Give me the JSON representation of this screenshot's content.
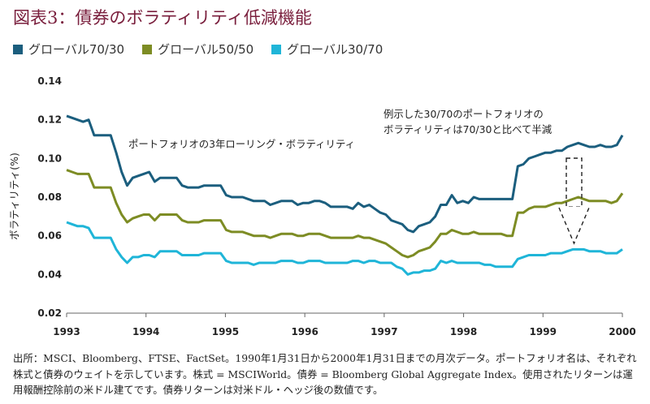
{
  "title": "図表3：債券のボラティリティ低減機能",
  "legend": [
    {
      "label": "グローバル70/30",
      "color": "#1b5e7e"
    },
    {
      "label": "グローバル50/50",
      "color": "#7d8c24"
    },
    {
      "label": "グローバル30/70",
      "color": "#1fb5d8"
    }
  ],
  "annotations": {
    "left": "ポートフォリオの3年ローリング・ボラティリティ",
    "right_line1": "例示した30/70のポートフォリオの",
    "right_line2": "ボラティリティは70/30と比べて半減"
  },
  "footnote": "出所：MSCI、Bloomberg、FTSE、FactSet。1990年1月31日から2000年1月31日までの月次データ。ポートフォリオ名は、それぞれ株式と債券のウェイトを示しています。株式 = MSCIWorld。債券 = Bloomberg Global Aggregate Index。使用されたリターンは運用報酬控除前の米ドル建てです。債券リターンは対米ドル・ヘッジ後の数値です。",
  "chart_data": {
    "type": "line",
    "title": "図表3：債券のボラティリティ低減機能",
    "xlabel": "",
    "ylabel": "ボラティリティ(%)",
    "xlim": [
      1993,
      2000
    ],
    "ylim": [
      0.02,
      0.14
    ],
    "yticks": [
      "0.02",
      "0.04",
      "0.06",
      "0.08",
      "0.10",
      "0.12",
      "0.14"
    ],
    "xticks": [
      "1993",
      "1994",
      "1995",
      "1996",
      "1997",
      "1998",
      "1999",
      "2000"
    ],
    "grid": false,
    "legend_position": "top-left",
    "x_count": 85,
    "x_start": 1993,
    "x_step_months": 1,
    "series": [
      {
        "name": "グローバル70/30",
        "color": "#1b5e7e",
        "values": [
          0.122,
          0.121,
          0.12,
          0.119,
          0.12,
          0.112,
          0.112,
          0.112,
          0.112,
          0.103,
          0.093,
          0.086,
          0.09,
          0.091,
          0.092,
          0.093,
          0.088,
          0.09,
          0.09,
          0.09,
          0.09,
          0.086,
          0.085,
          0.085,
          0.085,
          0.086,
          0.086,
          0.086,
          0.086,
          0.081,
          0.08,
          0.08,
          0.08,
          0.079,
          0.078,
          0.078,
          0.078,
          0.076,
          0.077,
          0.078,
          0.078,
          0.078,
          0.076,
          0.077,
          0.077,
          0.078,
          0.078,
          0.077,
          0.075,
          0.075,
          0.075,
          0.075,
          0.074,
          0.077,
          0.075,
          0.076,
          0.074,
          0.072,
          0.071,
          0.068,
          0.067,
          0.066,
          0.063,
          0.062,
          0.065,
          0.066,
          0.067,
          0.07,
          0.076,
          0.076,
          0.081,
          0.077,
          0.078,
          0.077,
          0.08,
          0.079,
          0.079,
          0.079,
          0.079,
          0.079,
          0.079,
          0.079,
          0.096,
          0.097,
          0.1
        ]
      },
      {
        "name": "グローバル50/50",
        "color": "#7d8c24",
        "values": [
          0.094,
          0.093,
          0.092,
          0.092,
          0.092,
          0.085,
          0.085,
          0.085,
          0.085,
          0.077,
          0.071,
          0.067,
          0.069,
          0.07,
          0.071,
          0.071,
          0.068,
          0.071,
          0.071,
          0.071,
          0.071,
          0.068,
          0.067,
          0.067,
          0.067,
          0.068,
          0.068,
          0.068,
          0.068,
          0.063,
          0.062,
          0.062,
          0.062,
          0.061,
          0.06,
          0.06,
          0.06,
          0.059,
          0.06,
          0.061,
          0.061,
          0.061,
          0.06,
          0.06,
          0.061,
          0.061,
          0.061,
          0.06,
          0.059,
          0.059,
          0.059,
          0.059,
          0.059,
          0.06,
          0.059,
          0.059,
          0.058,
          0.057,
          0.056,
          0.054,
          0.052,
          0.05,
          0.049,
          0.05,
          0.052,
          0.053,
          0.054,
          0.057,
          0.061,
          0.061,
          0.063,
          0.062,
          0.061,
          0.061,
          0.062,
          0.061,
          0.061,
          0.061,
          0.061,
          0.061,
          0.06,
          0.06,
          0.072,
          0.072,
          0.074
        ]
      },
      {
        "name": "グローバル30/70",
        "color": "#1fb5d8",
        "values": [
          0.067,
          0.066,
          0.065,
          0.065,
          0.064,
          0.059,
          0.059,
          0.059,
          0.059,
          0.053,
          0.049,
          0.046,
          0.049,
          0.049,
          0.05,
          0.05,
          0.049,
          0.052,
          0.052,
          0.052,
          0.052,
          0.05,
          0.05,
          0.05,
          0.05,
          0.051,
          0.051,
          0.051,
          0.051,
          0.047,
          0.046,
          0.046,
          0.046,
          0.046,
          0.045,
          0.046,
          0.046,
          0.046,
          0.046,
          0.047,
          0.047,
          0.047,
          0.046,
          0.046,
          0.047,
          0.047,
          0.047,
          0.046,
          0.046,
          0.046,
          0.046,
          0.046,
          0.047,
          0.047,
          0.046,
          0.047,
          0.047,
          0.046,
          0.046,
          0.046,
          0.044,
          0.043,
          0.04,
          0.041,
          0.041,
          0.042,
          0.042,
          0.043,
          0.047,
          0.046,
          0.047,
          0.046,
          0.046,
          0.046,
          0.046,
          0.046,
          0.045,
          0.045,
          0.044,
          0.044,
          0.044,
          0.044,
          0.048,
          0.049,
          0.05
        ]
      }
    ]
  },
  "chart_tail": {
    "series_tails": [
      [
        0.101,
        0.102,
        0.103,
        0.103,
        0.104,
        0.104,
        0.106,
        0.107,
        0.108,
        0.107,
        0.106,
        0.106,
        0.107,
        0.106,
        0.106,
        0.107,
        0.112
      ],
      [
        0.075,
        0.075,
        0.075,
        0.076,
        0.077,
        0.077,
        0.078,
        0.079,
        0.08,
        0.079,
        0.078,
        0.078,
        0.078,
        0.078,
        0.077,
        0.078,
        0.082
      ],
      [
        0.05,
        0.05,
        0.05,
        0.051,
        0.051,
        0.051,
        0.052,
        0.053,
        0.053,
        0.053,
        0.052,
        0.052,
        0.052,
        0.051,
        0.051,
        0.051,
        0.053
      ]
    ]
  }
}
